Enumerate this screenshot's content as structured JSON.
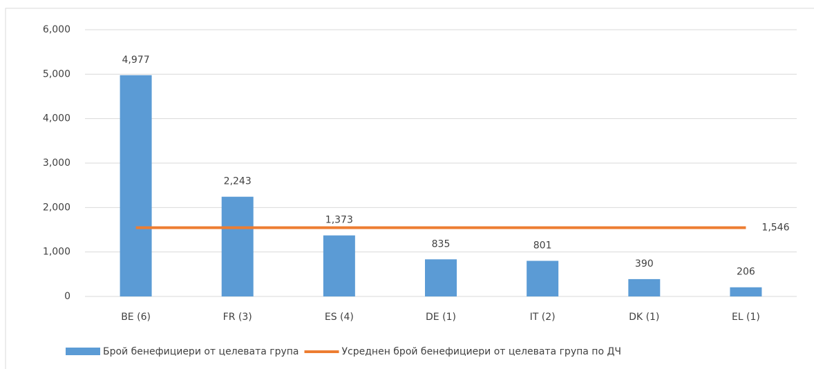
{
  "chart_data": {
    "type": "bar_line",
    "categories": [
      "BE (6)",
      "FR (3)",
      "ES (4)",
      "DE (1)",
      "IT (2)",
      "DK (1)",
      "EL (1)"
    ],
    "series": [
      {
        "name": "Брой бенефициери от целевата група",
        "type": "bar",
        "color": "#5b9bd5",
        "values": [
          4977,
          2243,
          1373,
          835,
          801,
          390,
          206
        ],
        "value_labels": [
          "4,977",
          "2,243",
          "1,373",
          "835",
          "801",
          "390",
          "206"
        ]
      },
      {
        "name": "Усреднен брой бенефициери от целевата група по ДЧ",
        "type": "line",
        "color": "#ed7d31",
        "values": [
          1546,
          1546,
          1546,
          1546,
          1546,
          1546,
          1546
        ],
        "value_labels": [
          null,
          null,
          null,
          null,
          null,
          null,
          "1,546"
        ]
      }
    ],
    "ylim": [
      0,
      6000
    ],
    "yticks": [
      0,
      {
        "value": 1000,
        "label": "1,000"
      },
      {
        "value": 2000,
        "label": "2,000"
      },
      {
        "value": 3000,
        "label": "3,000"
      },
      {
        "value": 4000,
        "label": "4,000"
      },
      {
        "value": 5000,
        "label": "5,000"
      },
      {
        "value": 6000,
        "label": "6,000"
      }
    ],
    "grid": true,
    "legend": "bottom"
  }
}
